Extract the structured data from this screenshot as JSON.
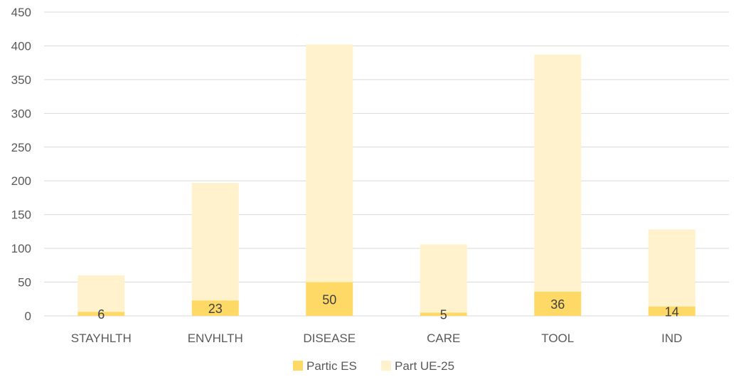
{
  "chart_data": {
    "type": "bar",
    "stacked": true,
    "title": "",
    "xlabel": "",
    "ylabel": "",
    "ylim": [
      0,
      450
    ],
    "yticks": [
      0,
      50,
      100,
      150,
      200,
      250,
      300,
      350,
      400,
      450
    ],
    "grid": true,
    "legend_position": "bottom",
    "categories": [
      "STAYHLTH",
      "ENVHLTH",
      "DISEASE",
      "CARE",
      "TOOL",
      "IND"
    ],
    "series": [
      {
        "name": "Partic ES",
        "values": [
          6,
          23,
          50,
          5,
          36,
          14
        ],
        "color": "#FFD966",
        "data_labels": true
      },
      {
        "name": "Part UE-25",
        "values": [
          54,
          174,
          352,
          101,
          351,
          114
        ],
        "color": "#FFF2CC",
        "data_labels": false
      }
    ]
  }
}
